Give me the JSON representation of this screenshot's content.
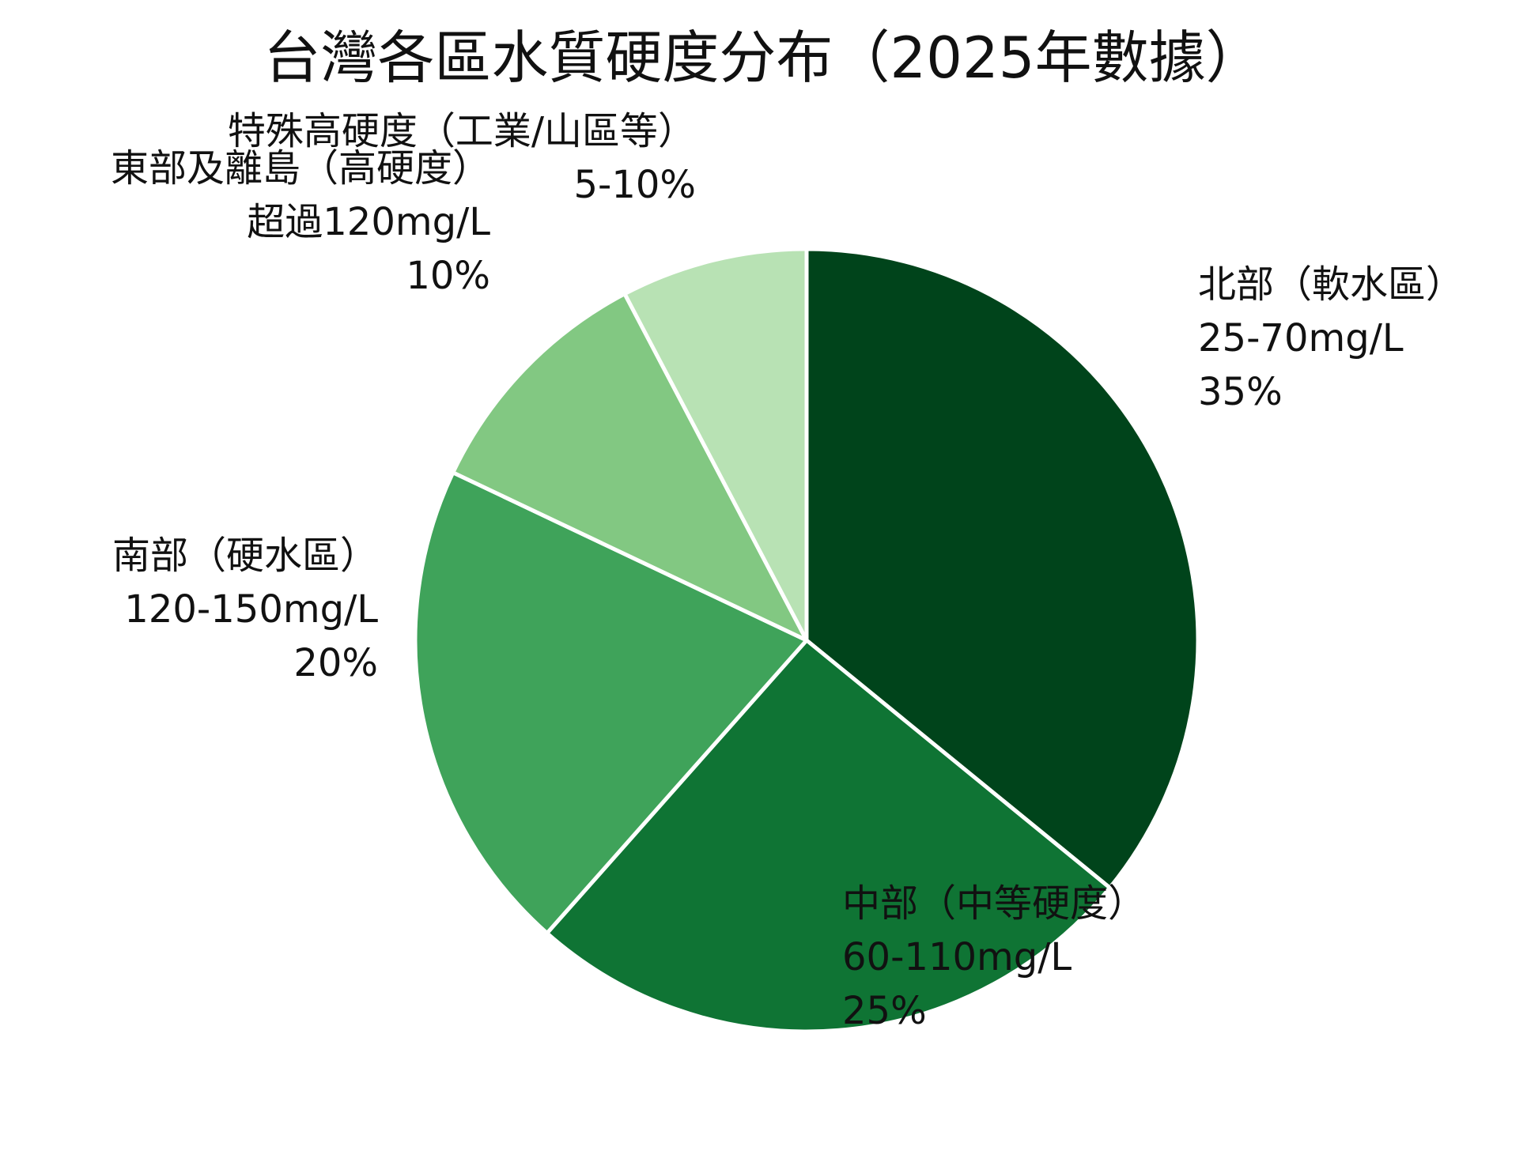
{
  "chart_data": {
    "type": "pie",
    "title": "台灣各區水質硬度分布（2025年數據）",
    "start_angle_deg": 0,
    "direction": "clockwise",
    "slices": [
      {
        "category": "北部（軟水區）",
        "range": "25-70mg/L",
        "value_label": "35%",
        "value": 35,
        "color": "#00441b"
      },
      {
        "category": "中部（中等硬度）",
        "range": "60-110mg/L",
        "value_label": "25%",
        "value": 25,
        "color": "#0f7434"
      },
      {
        "category": "南部（硬水區）",
        "range": "120-150mg/L",
        "value_label": "20%",
        "value": 20,
        "color": "#3fa35a"
      },
      {
        "category": "東部及離島（高硬度）",
        "range": "超過120mg/L",
        "value_label": "10%",
        "value": 10,
        "color": "#82c882"
      },
      {
        "category": "特殊高硬度（工業/山區等）",
        "range": "",
        "value_label": "5-10%",
        "value": 7.5,
        "color": "#b8e2b4"
      }
    ]
  }
}
